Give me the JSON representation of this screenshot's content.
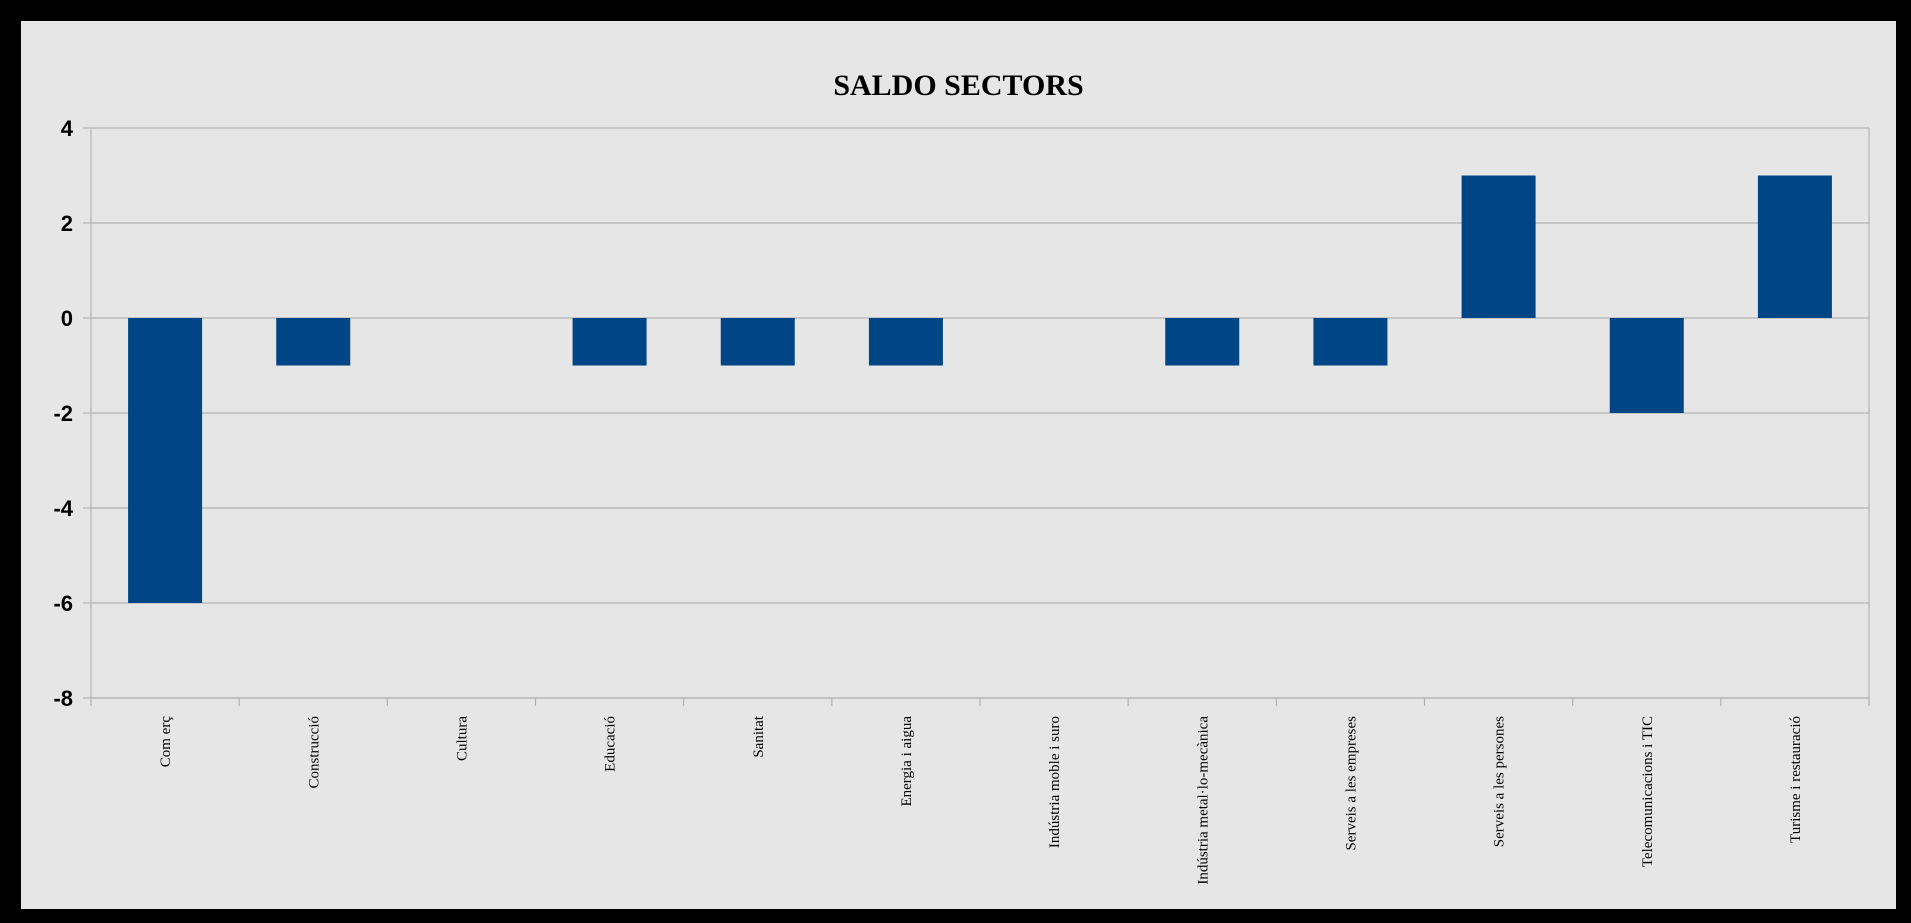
{
  "chart_data": {
    "type": "bar",
    "title": "SALDO SECTORS",
    "xlabel": "",
    "ylabel": "",
    "categories": [
      "Com erç",
      "Construcció",
      "Cultura",
      "Educació",
      "Sanitat",
      "Energia i aigua",
      "Indústria moble i suro",
      "Indústria metal·lo-mecànica",
      "Serveis a les empreses",
      "Serveis a les persones",
      "Telecomunicacions i TIC",
      "Turisme i restauració"
    ],
    "values": [
      -6,
      -1,
      0,
      -1,
      -1,
      -1,
      0,
      -1,
      -1,
      3,
      -2,
      3
    ],
    "ylim": [
      -8,
      4
    ],
    "yticks": [
      4,
      2,
      0,
      -2,
      -4,
      -6,
      -8
    ],
    "grid": true,
    "legend": "none",
    "colors": {
      "bar": "#004586",
      "grid": "#b3b3b3",
      "plot_background": "#e6e6e6",
      "frame": "#000000"
    }
  }
}
